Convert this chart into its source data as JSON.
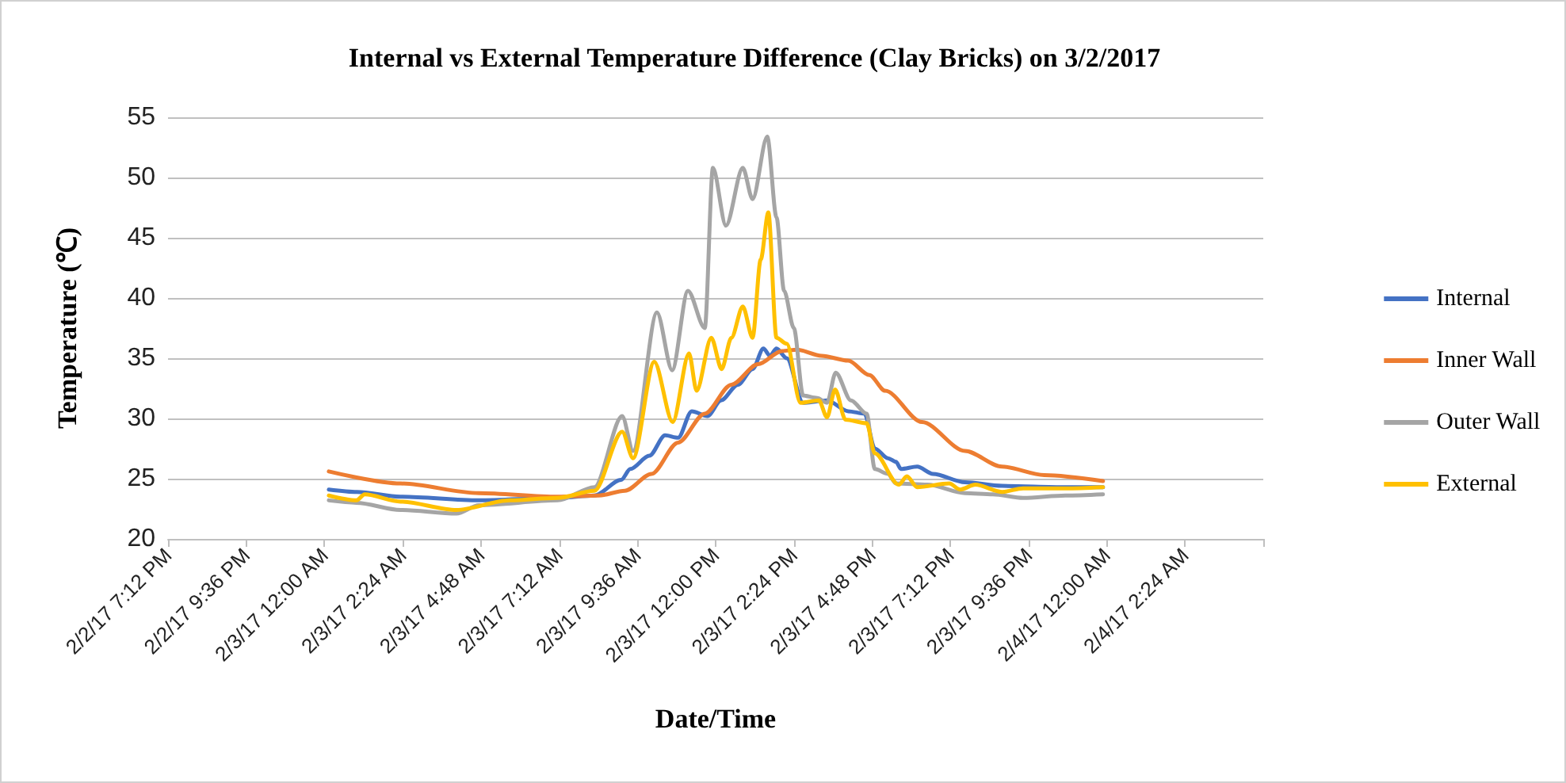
{
  "chart_data": {
    "type": "line",
    "title": "Internal vs External Temperature Difference (Clay Bricks) on 3/2/2017",
    "xlabel": "Date/Time",
    "ylabel": "Temperature (℃)",
    "xlim": [
      "2017-02-02T19:12",
      "2017-02-04T04:48"
    ],
    "xticks": [
      {
        "value": "2017-02-02T19:12",
        "label": "2/2/17 7:12 PM"
      },
      {
        "value": "2017-02-02T21:36",
        "label": "2/2/17 9:36 PM"
      },
      {
        "value": "2017-02-03T00:00",
        "label": "2/3/17 12:00 AM"
      },
      {
        "value": "2017-02-03T02:24",
        "label": "2/3/17 2:24 AM"
      },
      {
        "value": "2017-02-03T04:48",
        "label": "2/3/17 4:48 AM"
      },
      {
        "value": "2017-02-03T07:12",
        "label": "2/3/17 7:12 AM"
      },
      {
        "value": "2017-02-03T09:36",
        "label": "2/3/17 9:36 AM"
      },
      {
        "value": "2017-02-03T12:00",
        "label": "2/3/17 12:00 PM"
      },
      {
        "value": "2017-02-03T14:24",
        "label": "2/3/17 2:24 PM"
      },
      {
        "value": "2017-02-03T16:48",
        "label": "2/3/17 4:48 PM"
      },
      {
        "value": "2017-02-03T19:12",
        "label": "2/3/17 7:12 PM"
      },
      {
        "value": "2017-02-03T21:36",
        "label": "2/3/17 9:36 PM"
      },
      {
        "value": "2017-02-04T00:00",
        "label": "2/4/17 12:00 AM"
      },
      {
        "value": "2017-02-04T02:24",
        "label": "2/4/17 2:24 AM"
      },
      {
        "value": "2017-02-04T04:48",
        "label": null
      }
    ],
    "ylim": [
      20,
      55
    ],
    "yticks": [
      20,
      25,
      30,
      35,
      40,
      45,
      50,
      55
    ],
    "grid": "y",
    "legend": "right",
    "marker": "none",
    "line_style": "solid",
    "series": [
      {
        "name": "Internal",
        "color": "#4472c4",
        "x": [
          "2017-02-03T00:08",
          "2017-02-03T01:00",
          "2017-02-03T02:20",
          "2017-02-03T04:44",
          "2017-02-03T07:09",
          "2017-02-03T08:17",
          "2017-02-03T09:06",
          "2017-02-03T09:23",
          "2017-02-03T09:58",
          "2017-02-03T10:27",
          "2017-02-03T10:51",
          "2017-02-03T11:16",
          "2017-02-03T11:45",
          "2017-02-03T12:10",
          "2017-02-03T12:41",
          "2017-02-03T13:08",
          "2017-02-03T13:28",
          "2017-02-03T13:40",
          "2017-02-03T13:52",
          "2017-02-03T14:11",
          "2017-02-03T14:41",
          "2017-02-03T15:25",
          "2017-02-03T16:04",
          "2017-02-03T16:34",
          "2017-02-03T16:53",
          "2017-02-03T17:17",
          "2017-02-03T17:32",
          "2017-02-03T17:41",
          "2017-02-03T18:11",
          "2017-02-03T18:40",
          "2017-02-03T19:39",
          "2017-02-03T20:47",
          "2017-02-03T22:44",
          "2017-02-03T23:53"
        ],
        "values": [
          24.1,
          23.9,
          23.5,
          23.2,
          23.4,
          23.6,
          24.9,
          25.8,
          26.9,
          28.6,
          28.4,
          30.6,
          30.2,
          31.5,
          32.8,
          34.1,
          35.8,
          35.2,
          35.8,
          35.0,
          31.3,
          31.5,
          30.6,
          30.4,
          27.5,
          26.7,
          26.4,
          25.8,
          26.0,
          25.4,
          24.7,
          24.4,
          24.3,
          24.3
        ]
      },
      {
        "name": "Inner Wall",
        "color": "#ed7d31",
        "x": [
          "2017-02-03T00:08",
          "2017-02-03T02:20",
          "2017-02-03T04:44",
          "2017-02-03T07:09",
          "2017-02-03T08:25",
          "2017-02-03T09:13",
          "2017-02-03T10:02",
          "2017-02-03T10:51",
          "2017-02-03T11:40",
          "2017-02-03T12:29",
          "2017-02-03T13:18",
          "2017-02-03T14:02",
          "2017-02-03T14:30",
          "2017-02-03T15:15",
          "2017-02-03T16:04",
          "2017-02-03T16:43",
          "2017-02-03T17:12",
          "2017-02-03T18:20",
          "2017-02-03T19:39",
          "2017-02-03T20:47",
          "2017-02-03T22:05",
          "2017-02-03T23:53"
        ],
        "values": [
          25.6,
          24.6,
          23.8,
          23.5,
          23.6,
          24.0,
          25.4,
          28.0,
          30.4,
          32.8,
          34.5,
          35.6,
          35.7,
          35.2,
          34.8,
          33.6,
          32.3,
          29.7,
          27.3,
          26.0,
          25.3,
          24.8
        ]
      },
      {
        "name": "Outer Wall",
        "color": "#a5a5a5",
        "x": [
          "2017-02-03T00:08",
          "2017-02-03T00:59",
          "2017-02-03T02:20",
          "2017-02-03T04:03",
          "2017-02-03T04:44",
          "2017-02-03T07:09",
          "2017-02-03T08:17",
          "2017-02-03T09:08",
          "2017-02-03T09:28",
          "2017-02-03T10:12",
          "2017-02-03T10:40",
          "2017-02-03T11:09",
          "2017-02-03T11:40",
          "2017-02-03T11:55",
          "2017-02-03T12:19",
          "2017-02-03T12:50",
          "2017-02-03T13:08",
          "2017-02-03T13:35",
          "2017-02-03T13:52",
          "2017-02-03T14:06",
          "2017-02-03T14:24",
          "2017-02-03T14:41",
          "2017-02-03T15:07",
          "2017-02-03T15:25",
          "2017-02-03T15:41",
          "2017-02-03T16:09",
          "2017-02-03T16:38",
          "2017-02-03T16:53",
          "2017-02-03T17:17",
          "2017-02-03T17:32",
          "2017-02-03T18:30",
          "2017-02-03T19:39",
          "2017-02-03T20:30",
          "2017-02-03T21:26",
          "2017-02-03T22:44",
          "2017-02-03T23:53"
        ],
        "values": [
          23.2,
          23.0,
          22.4,
          22.1,
          22.8,
          23.2,
          24.3,
          30.2,
          27.3,
          38.8,
          34.0,
          40.6,
          37.5,
          50.8,
          46.0,
          50.8,
          48.2,
          53.4,
          46.7,
          40.6,
          37.5,
          31.9,
          31.7,
          31.3,
          33.8,
          31.5,
          30.4,
          25.8,
          25.4,
          24.6,
          24.5,
          23.8,
          23.7,
          23.4,
          23.6,
          23.7
        ]
      },
      {
        "name": "External",
        "color": "#ffc000",
        "x": [
          "2017-02-03T00:08",
          "2017-02-03T00:59",
          "2017-02-03T01:14",
          "2017-02-03T02:20",
          "2017-02-03T04:03",
          "2017-02-03T05:41",
          "2017-02-03T07:09",
          "2017-02-03T08:17",
          "2017-02-03T09:08",
          "2017-02-03T09:28",
          "2017-02-03T10:07",
          "2017-02-03T10:41",
          "2017-02-03T11:11",
          "2017-02-03T11:25",
          "2017-02-03T11:52",
          "2017-02-03T12:11",
          "2017-02-03T12:29",
          "2017-02-03T12:50",
          "2017-02-03T13:08",
          "2017-02-03T13:23",
          "2017-02-03T13:37",
          "2017-02-03T13:52",
          "2017-02-03T14:11",
          "2017-02-03T14:36",
          "2017-02-03T15:10",
          "2017-02-03T15:25",
          "2017-02-03T15:40",
          "2017-02-03T15:59",
          "2017-02-03T16:38",
          "2017-02-03T16:53",
          "2017-02-03T17:37",
          "2017-02-03T17:52",
          "2017-02-03T18:11",
          "2017-02-03T19:10",
          "2017-02-03T19:30",
          "2017-02-03T19:58",
          "2017-02-03T20:47",
          "2017-02-03T21:26",
          "2017-02-03T22:44",
          "2017-02-03T23:53"
        ],
        "values": [
          23.6,
          23.2,
          23.7,
          23.1,
          22.4,
          23.2,
          23.4,
          24.0,
          28.9,
          26.7,
          34.7,
          29.7,
          35.4,
          32.3,
          36.7,
          34.1,
          36.7,
          39.3,
          36.7,
          43.2,
          47.1,
          36.7,
          36.2,
          31.3,
          31.5,
          30.1,
          32.4,
          29.9,
          29.6,
          27.1,
          24.5,
          25.2,
          24.3,
          24.6,
          24.1,
          24.5,
          23.9,
          24.2,
          24.2,
          24.3
        ]
      }
    ]
  }
}
